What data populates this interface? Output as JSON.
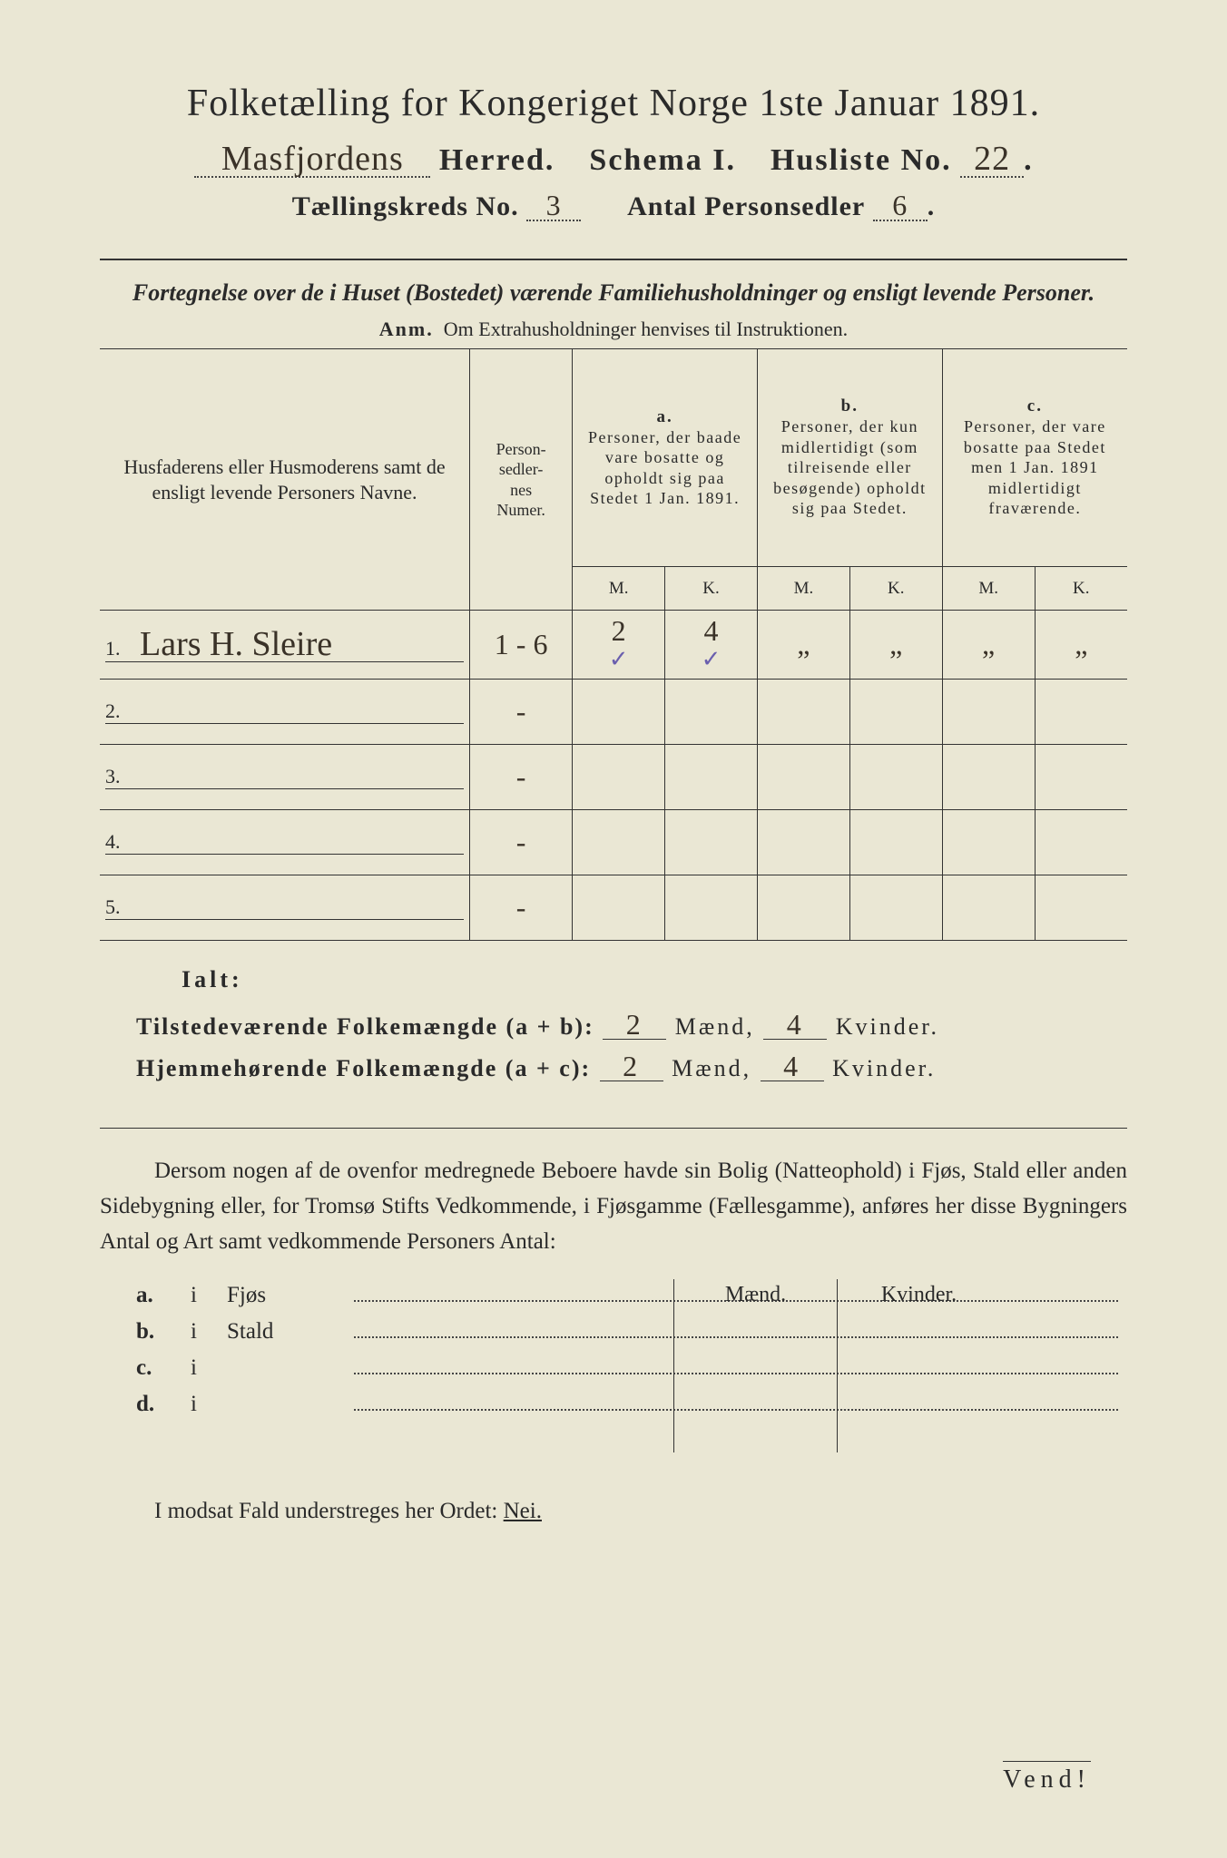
{
  "title": "Folketælling for Kongeriget Norge 1ste Januar 1891.",
  "header": {
    "herred_hand": "Masfjordens",
    "herred_label": "Herred.",
    "schema_label": "Schema I.",
    "husliste_label": "Husliste No.",
    "husliste_no": "22",
    "kreds_label": "Tællingskreds No.",
    "kreds_no": "3",
    "antal_label": "Antal Personsedler",
    "antal_no": "6"
  },
  "subtitle": "Fortegnelse over de i Huset (Bostedet) værende Familiehusholdninger og ensligt levende Personer.",
  "anm_label": "Anm.",
  "anm_text": "Om Extrahusholdninger henvises til Instruktionen.",
  "table": {
    "col_name": "Husfaderens eller Husmoderens samt de ensligt levende Personers Navne.",
    "col_num": "Person-\nsedler-\nnes\nNumer.",
    "col_a_tag": "a.",
    "col_a": "Personer, der baade vare bosatte og opholdt sig paa Stedet 1 Jan. 1891.",
    "col_b_tag": "b.",
    "col_b": "Personer, der kun midlertidigt (som tilreisende eller besøgende) opholdt sig paa Stedet.",
    "col_c_tag": "c.",
    "col_c": "Personer, der vare bosatte paa Stedet men 1 Jan. 1891 midlertidigt fraværende.",
    "M": "M.",
    "K": "K.",
    "rows": [
      {
        "n": "1.",
        "name": "Lars H. Sleire",
        "num": "1 - 6",
        "aM": "2",
        "aK": "4",
        "bM": "„",
        "bK": "„",
        "cM": "„",
        "cK": "„",
        "tickM": "✓",
        "tickK": "✓"
      },
      {
        "n": "2.",
        "name": "",
        "num": "-",
        "aM": "",
        "aK": "",
        "bM": "",
        "bK": "",
        "cM": "",
        "cK": ""
      },
      {
        "n": "3.",
        "name": "",
        "num": "-",
        "aM": "",
        "aK": "",
        "bM": "",
        "bK": "",
        "cM": "",
        "cK": ""
      },
      {
        "n": "4.",
        "name": "",
        "num": "-",
        "aM": "",
        "aK": "",
        "bM": "",
        "bK": "",
        "cM": "",
        "cK": ""
      },
      {
        "n": "5.",
        "name": "",
        "num": "-",
        "aM": "",
        "aK": "",
        "bM": "",
        "bK": "",
        "cM": "",
        "cK": ""
      }
    ]
  },
  "ialt": "Ialt:",
  "totals": {
    "line1_label": "Tilstedeværende Folkemængde (a + b):",
    "line2_label": "Hjemmehørende Folkemængde (a + c):",
    "maend": "Mænd,",
    "kvinder": "Kvinder.",
    "t_m": "2",
    "t_k": "4",
    "h_m": "2",
    "h_k": "4"
  },
  "para": "Dersom nogen af de ovenfor medregnede Beboere havde sin Bolig (Natteophold) i Fjøs, Stald eller anden Sidebygning eller, for Tromsø Stifts Vedkommende, i Fjøsgamme (Fællesgamme), anføres her disse Bygningers Antal og Art samt vedkommende Personers Antal:",
  "mk_head": {
    "m": "Mænd.",
    "k": "Kvinder."
  },
  "fjos": [
    {
      "tag": "a.",
      "i": "i",
      "name": "Fjøs"
    },
    {
      "tag": "b.",
      "i": "i",
      "name": "Stald"
    },
    {
      "tag": "c.",
      "i": "i",
      "name": ""
    },
    {
      "tag": "d.",
      "i": "i",
      "name": ""
    }
  ],
  "modsat": "I modsat Fald understreges her Ordet:",
  "nei": "Nei.",
  "vend": "Vend!",
  "colors": {
    "paper": "#eae7d4",
    "ink": "#2a2a2a",
    "hand": "#3a3228",
    "tick": "#6a5fae"
  }
}
